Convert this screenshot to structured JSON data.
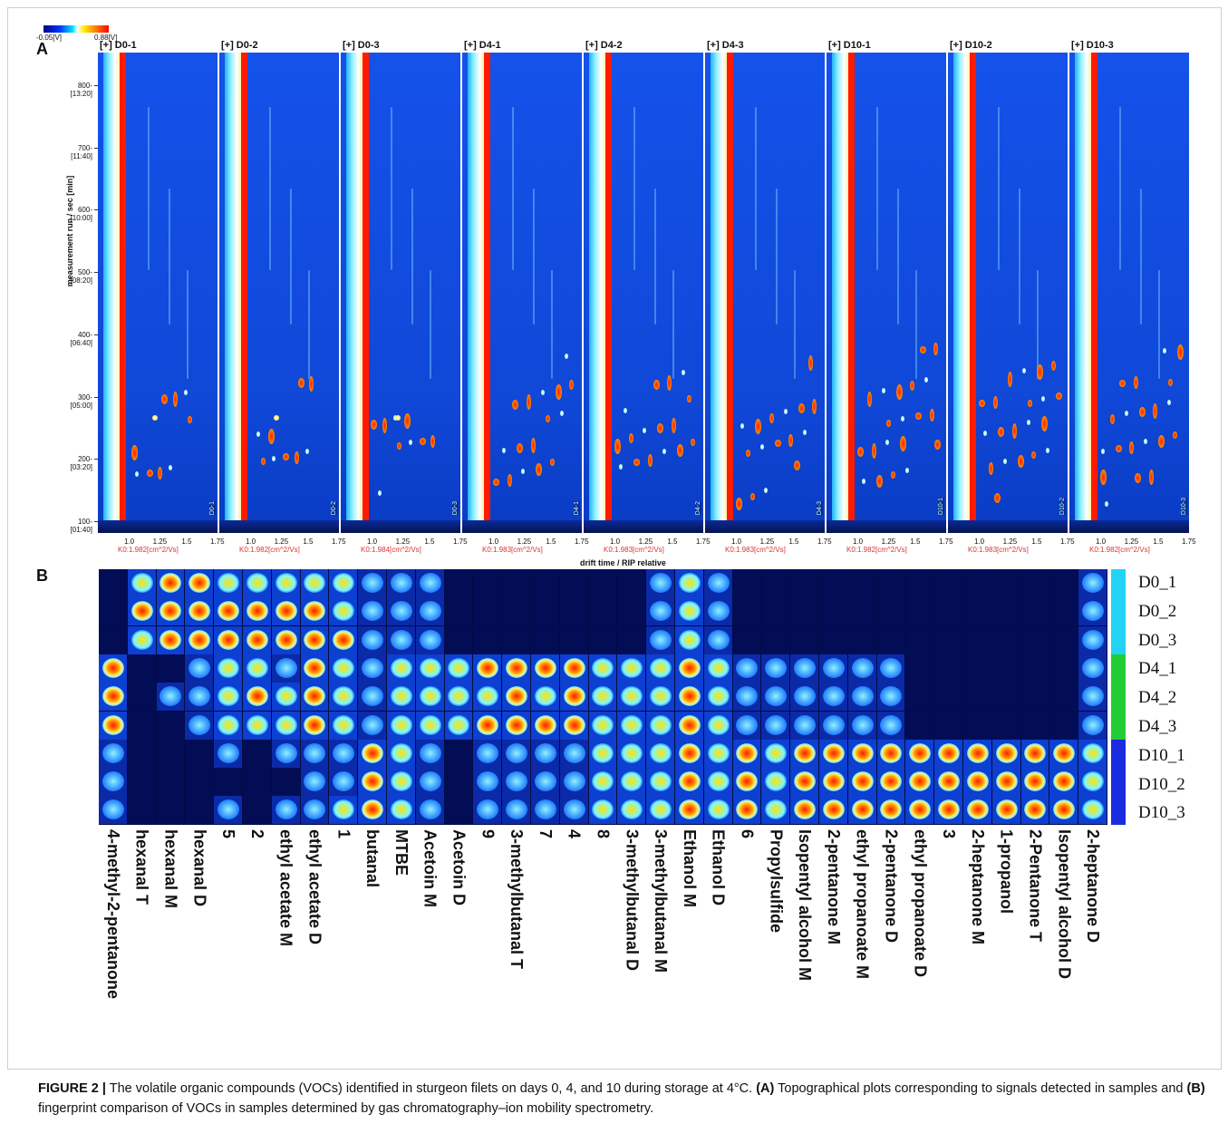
{
  "panel_a": {
    "letter": "A",
    "colorbar": {
      "min_label": "-0.05[V]",
      "max_label": "0.88[V]"
    },
    "y_axis_label": "measurement run / sec [min]",
    "y_ticks": [
      {
        "sec": "800-",
        "min": "[13:20]"
      },
      {
        "sec": "700-",
        "min": "[11:40]"
      },
      {
        "sec": "600-",
        "min": "[10:00]"
      },
      {
        "sec": "500-",
        "min": "[08:20]"
      },
      {
        "sec": "400-",
        "min": "[06:40]"
      },
      {
        "sec": "300-",
        "min": "[05:00]"
      },
      {
        "sec": "200-",
        "min": "[03:20]"
      },
      {
        "sec": "100-",
        "min": "[01:40]"
      }
    ],
    "x_axis_label": "drift time / RIP relative",
    "x_ticks": [
      "1.0",
      "1.25",
      "1.5",
      "1.75"
    ],
    "samples": [
      {
        "title": "[+] D0-1",
        "k0": "K0:1.982[cm^2/Vs]",
        "group": "D0"
      },
      {
        "title": "[+] D0-2",
        "k0": "K0:1.982[cm^2/Vs]",
        "group": "D0"
      },
      {
        "title": "[+] D0-3",
        "k0": "K0:1.984[cm^2/Vs]",
        "group": "D0"
      },
      {
        "title": "[+] D4-1",
        "k0": "K0:1.983[cm^2/Vs]",
        "group": "D4"
      },
      {
        "title": "[+] D4-2",
        "k0": "K0:1.983[cm^2/Vs]",
        "group": "D4"
      },
      {
        "title": "[+] D4-3",
        "k0": "K0:1.983[cm^2/Vs]",
        "group": "D4"
      },
      {
        "title": "[+] D10-1",
        "k0": "K0:1.982[cm^2/Vs]",
        "group": "D10"
      },
      {
        "title": "[+] D10-2",
        "k0": "K0:1.983[cm^2/Vs]",
        "group": "D10"
      },
      {
        "title": "[+] D10-3",
        "k0": "K0:1.982[cm^2/Vs]",
        "group": "D10"
      }
    ]
  },
  "panel_b": {
    "letter": "B",
    "rows": [
      "D0_1",
      "D0_2",
      "D0_3",
      "D4_1",
      "D4_2",
      "D4_3",
      "D10_1",
      "D10_2",
      "D10_3"
    ],
    "row_colors": {
      "D0": "#22d3f5",
      "D4": "#22cc33",
      "D10": "#1a2be0"
    },
    "compounds": [
      {
        "name": "4-methyl-2-pentanone",
        "profile": [
          0,
          0,
          0,
          3,
          3,
          3,
          1,
          1,
          1
        ]
      },
      {
        "name": "hexanal T",
        "profile": [
          2,
          3,
          2,
          0,
          0,
          0,
          0,
          0,
          0
        ]
      },
      {
        "name": "hexanal M",
        "profile": [
          3,
          3,
          3,
          0,
          1,
          0,
          0,
          0,
          0
        ]
      },
      {
        "name": "hexanal D",
        "profile": [
          3,
          3,
          3,
          1,
          1,
          1,
          0,
          0,
          0
        ]
      },
      {
        "name": "5",
        "profile": [
          2,
          3,
          3,
          2,
          2,
          2,
          1,
          0,
          1
        ]
      },
      {
        "name": "2",
        "profile": [
          2,
          3,
          3,
          2,
          3,
          2,
          0,
          0,
          0
        ]
      },
      {
        "name": "ethyl acetate M",
        "profile": [
          2,
          3,
          3,
          1,
          2,
          2,
          1,
          0,
          1
        ]
      },
      {
        "name": "ethyl acetate D",
        "profile": [
          2,
          3,
          3,
          3,
          3,
          3,
          1,
          1,
          1
        ]
      },
      {
        "name": "1",
        "profile": [
          2,
          2,
          3,
          2,
          2,
          2,
          1,
          1,
          2
        ]
      },
      {
        "name": "butanal",
        "profile": [
          1,
          1,
          1,
          1,
          1,
          1,
          3,
          3,
          3
        ]
      },
      {
        "name": "MTBE",
        "profile": [
          1,
          1,
          1,
          2,
          2,
          2,
          2,
          2,
          2
        ]
      },
      {
        "name": "Acetoin M",
        "profile": [
          1,
          1,
          1,
          2,
          2,
          2,
          1,
          1,
          1
        ]
      },
      {
        "name": "Acetoin D",
        "profile": [
          0,
          0,
          0,
          2,
          2,
          2,
          0,
          0,
          0
        ]
      },
      {
        "name": "9",
        "profile": [
          0,
          0,
          0,
          3,
          2,
          3,
          1,
          1,
          1
        ]
      },
      {
        "name": "3-methylbutanal T",
        "profile": [
          0,
          0,
          0,
          3,
          3,
          3,
          1,
          1,
          1
        ]
      },
      {
        "name": "7",
        "profile": [
          0,
          0,
          0,
          3,
          2,
          3,
          1,
          1,
          1
        ]
      },
      {
        "name": "4",
        "profile": [
          0,
          0,
          0,
          3,
          3,
          3,
          1,
          1,
          1
        ]
      },
      {
        "name": "8",
        "profile": [
          0,
          0,
          0,
          2,
          2,
          2,
          2,
          2,
          2
        ]
      },
      {
        "name": "3-methylbutanal D",
        "profile": [
          0,
          0,
          0,
          2,
          2,
          2,
          2,
          2,
          2
        ]
      },
      {
        "name": "3-methylbutanal M",
        "profile": [
          1,
          1,
          1,
          2,
          2,
          2,
          2,
          2,
          2
        ]
      },
      {
        "name": "Ethanol M",
        "profile": [
          2,
          2,
          2,
          3,
          3,
          3,
          3,
          3,
          3
        ]
      },
      {
        "name": "Ethanol D",
        "profile": [
          1,
          1,
          1,
          2,
          2,
          2,
          2,
          2,
          2
        ]
      },
      {
        "name": "6",
        "profile": [
          0,
          0,
          0,
          1,
          1,
          1,
          3,
          3,
          3
        ]
      },
      {
        "name": "Propylsulfide",
        "profile": [
          0,
          0,
          0,
          1,
          1,
          1,
          2,
          2,
          2
        ]
      },
      {
        "name": "Isopentyl alcohol M",
        "profile": [
          0,
          0,
          0,
          1,
          1,
          1,
          3,
          3,
          3
        ]
      },
      {
        "name": "2-pentanone M",
        "profile": [
          0,
          0,
          0,
          1,
          1,
          1,
          3,
          3,
          3
        ]
      },
      {
        "name": "ethyl propanoate M",
        "profile": [
          0,
          0,
          0,
          1,
          1,
          1,
          3,
          3,
          3
        ]
      },
      {
        "name": "2-pentanone D",
        "profile": [
          0,
          0,
          0,
          1,
          1,
          1,
          3,
          3,
          3
        ]
      },
      {
        "name": "ethyl propanoate D",
        "profile": [
          0,
          0,
          0,
          0,
          0,
          0,
          3,
          3,
          3
        ]
      },
      {
        "name": "3",
        "profile": [
          0,
          0,
          0,
          0,
          0,
          0,
          3,
          3,
          3
        ]
      },
      {
        "name": "2-heptanone M",
        "profile": [
          0,
          0,
          0,
          0,
          0,
          0,
          3,
          3,
          3
        ]
      },
      {
        "name": "1-propanol",
        "profile": [
          0,
          0,
          0,
          0,
          0,
          0,
          3,
          3,
          3
        ]
      },
      {
        "name": "2-Pentanone T",
        "profile": [
          0,
          0,
          0,
          0,
          0,
          0,
          3,
          3,
          3
        ]
      },
      {
        "name": "Isopentyl alcohol D",
        "profile": [
          0,
          0,
          0,
          0,
          0,
          0,
          3,
          3,
          3
        ]
      },
      {
        "name": "2-heptanone D",
        "profile": [
          1,
          1,
          1,
          1,
          1,
          1,
          2,
          2,
          2
        ]
      }
    ]
  },
  "caption": {
    "label": "FIGURE 2 |",
    "text1": " The volatile organic compounds (VOCs) identified in sturgeon filets on days 0, 4, and 10 during storage at 4°C. ",
    "a_label": "(A)",
    "text2": " Topographical plots corresponding to signals detected in samples and ",
    "b_label": "(B)",
    "text3": " fingerprint comparison of VOCs in samples determined by gas chromatography–ion mobility spectrometry."
  }
}
